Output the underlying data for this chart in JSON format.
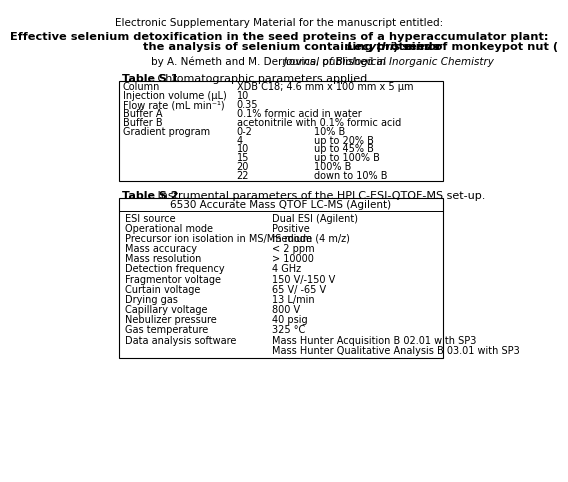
{
  "header_line1": "Electronic Supplementary Material for the manuscript entitled:",
  "title_line1": "Effective selenium detoxification in the seed proteins of a hyperaccumulator plant:",
  "title_line2_prefix": "the analysis of selenium containing proteins of monkeypot nut (",
  "title_line2_italic": "Lecythis minor",
  "title_line2_suffix": ") seeds",
  "author_prefix": "by A. Németh and M. Dernovics, published in ",
  "author_journal": "Journal of Biological Inorganic Chemistry",
  "table1_label": "Table S 1",
  "table1_caption": " Chromatographic parameters applied.",
  "table1_rows": [
    [
      "Column",
      "XDB C18; 4.6 mm x 100 mm x 5 μm",
      ""
    ],
    [
      "Injection volume (μL)",
      "10",
      ""
    ],
    [
      "Flow rate (mL min⁻¹)",
      "0.35",
      ""
    ],
    [
      "Buffer A",
      "0.1% formic acid in water",
      ""
    ],
    [
      "Buffer B",
      "acetonitrile with 0.1% formic acid",
      ""
    ],
    [
      "Gradient program",
      "0-2",
      "10% B"
    ],
    [
      "",
      "4",
      "up to 20% B"
    ],
    [
      "",
      "10",
      "up to 45% B"
    ],
    [
      "",
      "15",
      "up to 100% B"
    ],
    [
      "",
      "20",
      "100% B"
    ],
    [
      "",
      "22",
      "down to 10% B"
    ]
  ],
  "table2_label": "Table S 2",
  "table2_caption": " Instrumental parameters of the HPLC-ESI-QTOF-MS set-up.",
  "table2_header": "6530 Accurate Mass QTOF LC-MS (Agilent)",
  "table2_rows": [
    [
      "ESI source",
      "Dual ESI (Agilent)"
    ],
    [
      "Operational mode",
      "Positive"
    ],
    [
      "Precursor ion isolation in MS/MS mode",
      "medium (4 m/z)"
    ],
    [
      "Mass accuracy",
      "< 2 ppm"
    ],
    [
      "Mass resolution",
      "> 10000"
    ],
    [
      "Detection frequency",
      "4 GHz"
    ],
    [
      "Fragmentor voltage",
      "150 V/-150 V"
    ],
    [
      "Curtain voltage",
      "65 V/ -65 V"
    ],
    [
      "Drying gas",
      "13 L/min"
    ],
    [
      "Capillary voltage",
      "800 V"
    ],
    [
      "Nebulizer pressure",
      "40 psig"
    ],
    [
      "Gas temperature",
      "325 °C"
    ],
    [
      "Data analysis software",
      "Mass Hunter Acquisition B 02.01 with SP3"
    ],
    [
      "",
      "Mass Hunter Qualitative Analysis B 03.01 with SP3"
    ]
  ],
  "bg_color": "#ffffff",
  "text_color": "#000000",
  "border_color": "#000000"
}
